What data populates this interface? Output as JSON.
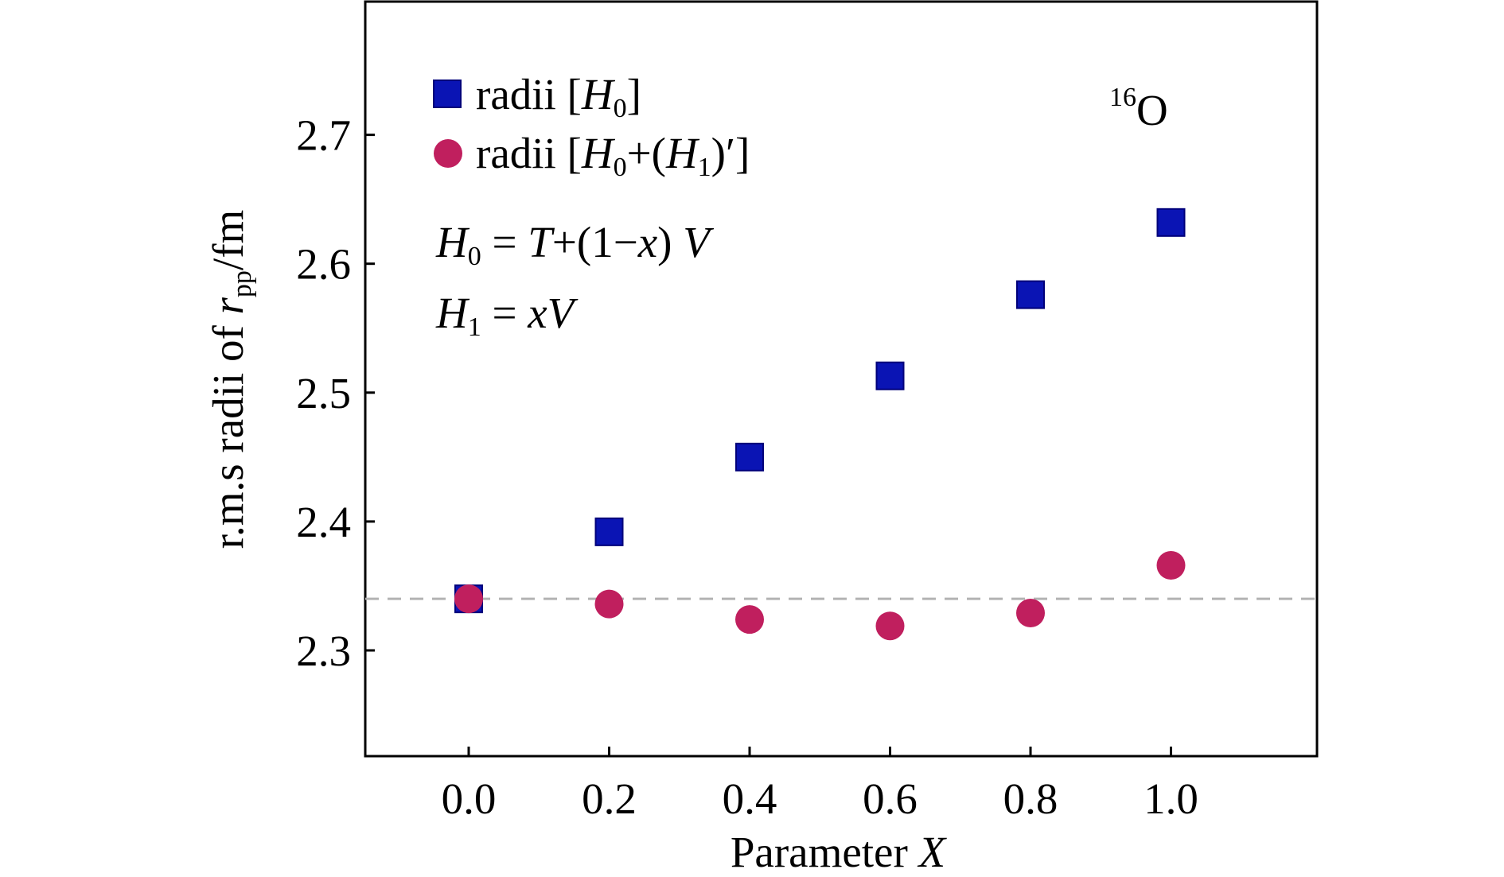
{
  "chart_data": {
    "type": "scatter",
    "xlabel": "Parameter X",
    "xlabel_parts": {
      "text": "Parameter ",
      "var": "X"
    },
    "ylabel": "r.m.s radii of r_pp/fm",
    "ylabel_parts": {
      "prefix": "r.m.s radii of ",
      "var": "r",
      "sub": "pp",
      "suffix": "/fm"
    },
    "xlim": [
      -0.15,
      1.2
    ],
    "ylim": [
      2.22,
      2.8
    ],
    "x_ticks": [
      0.0,
      0.2,
      0.4,
      0.6,
      0.8,
      1.0
    ],
    "x_tick_labels": [
      "0.0",
      "0.2",
      "0.4",
      "0.6",
      "0.8",
      "1.0"
    ],
    "y_ticks": [
      2.3,
      2.4,
      2.5,
      2.6,
      2.7
    ],
    "y_tick_labels": [
      "2.3",
      "2.4",
      "2.5",
      "2.6",
      "2.7"
    ],
    "grid": false,
    "legend_position": "top-left",
    "reference_line": {
      "y": 2.34,
      "style": "dashed",
      "color": "#b3b3b3"
    },
    "series": [
      {
        "name": "radii [H0]",
        "legend_parts": {
          "pre": "radii [",
          "var": "H",
          "sub": "0",
          "post": "]"
        },
        "marker": "square",
        "color": "#0a14b4",
        "x": [
          0.0,
          0.2,
          0.4,
          0.6,
          0.8,
          1.0
        ],
        "y": [
          2.34,
          2.392,
          2.45,
          2.513,
          2.576,
          2.632
        ]
      },
      {
        "name": "radii [H0+(H1)′]",
        "legend_parts": {
          "pre": "radii [",
          "var1": "H",
          "sub1": "0",
          "mid": "+(",
          "var2": "H",
          "sub2": "1",
          "post": ")′]"
        },
        "marker": "circle",
        "color": "#c01f5e",
        "x": [
          0.0,
          0.2,
          0.4,
          0.6,
          0.8,
          1.0
        ],
        "y": [
          2.34,
          2.336,
          2.324,
          2.319,
          2.329,
          2.366
        ]
      }
    ],
    "annotations": {
      "nucleus": {
        "sup": "16",
        "text": "O"
      },
      "eq1": {
        "var": "H",
        "sub": "0",
        "rest1": " = ",
        "var2": "T",
        "rest2": "+(1−",
        "var3": "x",
        "rest3": ") ",
        "var4": "V"
      },
      "eq2": {
        "var": "H",
        "sub": "1",
        "rest1": " = ",
        "var2": "xV"
      }
    }
  }
}
